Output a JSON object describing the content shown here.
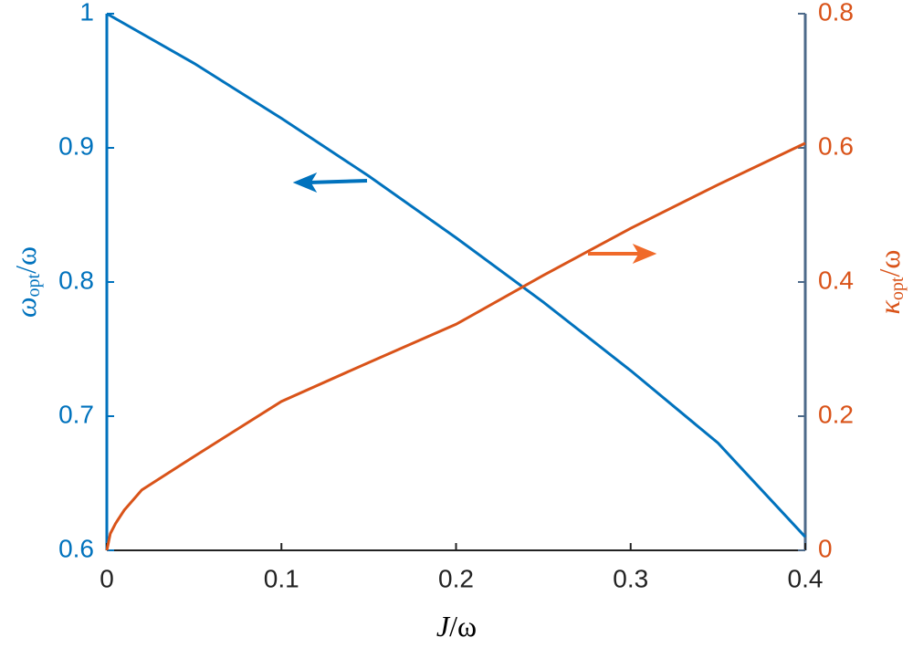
{
  "chart_data": {
    "type": "line",
    "xlabel": [
      "J",
      "/ω"
    ],
    "ylabel": [
      "ω",
      "opt",
      "/ω"
    ],
    "y2label": [
      "κ",
      "opt",
      "/ω"
    ],
    "xlim": [
      0,
      0.4
    ],
    "xticks": [
      0,
      0.1,
      0.2,
      0.3,
      0.4
    ],
    "ylim": [
      0.6,
      1
    ],
    "yticks": [
      0.6,
      0.7,
      0.8,
      0.9,
      1
    ],
    "y2lim": [
      0,
      0.8
    ],
    "y2ticks": [
      0,
      0.2,
      0.4,
      0.6,
      0.8
    ],
    "series": [
      {
        "color": "#0072BD",
        "axis": "y",
        "x": [
          0,
          0.05,
          0.1,
          0.15,
          0.2,
          0.25,
          0.3,
          0.35,
          0.4
        ],
        "values": [
          1,
          0.963,
          0.922,
          0.879,
          0.833,
          0.785,
          0.734,
          0.68,
          0.61
        ]
      },
      {
        "color": "#D95319",
        "axis": "y2",
        "x": [
          0,
          0.002,
          0.005,
          0.01,
          0.02,
          0.05,
          0.1,
          0.15,
          0.2,
          0.25,
          0.3,
          0.35,
          0.4
        ],
        "values": [
          0,
          0.025,
          0.04,
          0.06,
          0.09,
          0.14,
          0.222,
          0.28,
          0.337,
          0.41,
          0.48,
          0.545,
          0.607
        ]
      }
    ]
  }
}
